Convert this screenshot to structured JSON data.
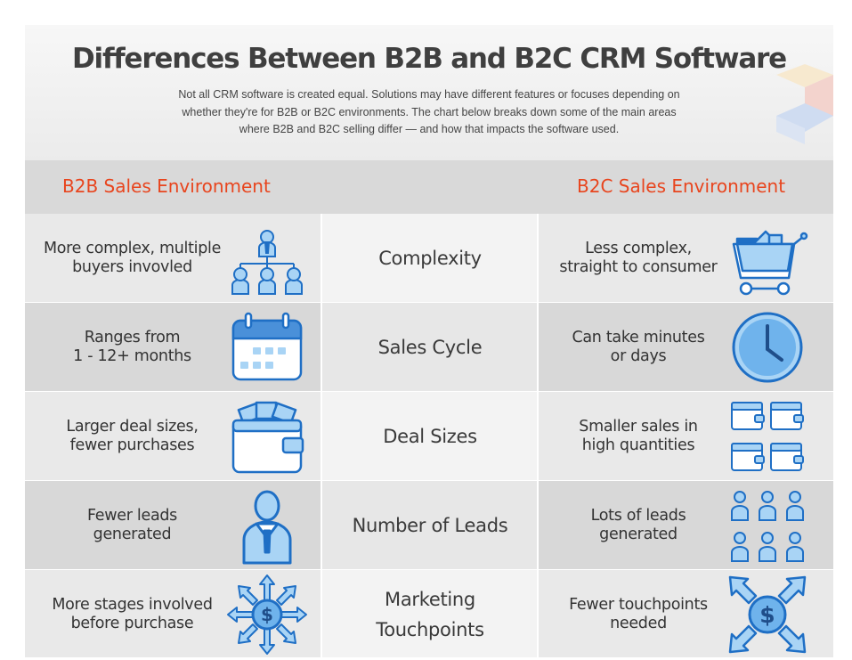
{
  "header": {
    "title": "Differences Between B2B and B2C CRM Software",
    "subtitle": "Not all CRM software is created equal. Solutions may have different features or focuses depending on whether they're for B2B or B2C environments. The chart below breaks down some of the main areas where B2B and B2C selling differ — and how that impacts the software used."
  },
  "columns": {
    "left": "B2B Sales Environment",
    "right": "B2C Sales Environment"
  },
  "rows": [
    {
      "category": "Complexity",
      "b2b": "More complex, multiple\nbuyers invovled",
      "b2c": "Less complex,\nstraight to consumer",
      "b2b_icon": "org-chart-buyers-icon",
      "b2c_icon": "shopping-cart-icon"
    },
    {
      "category": "Sales Cycle",
      "b2b": "Ranges from\n1 - 12+ months",
      "b2c": "Can take minutes\nor days",
      "b2b_icon": "calendar-icon",
      "b2c_icon": "clock-icon"
    },
    {
      "category": "Deal Sizes",
      "b2b": "Larger deal sizes,\nfewer purchases",
      "b2c": "Smaller sales in\nhigh quantities",
      "b2b_icon": "large-wallet-icon",
      "b2c_icon": "small-wallets-icon"
    },
    {
      "category": "Number of Leads",
      "b2b": "Fewer leads\ngenerated",
      "b2c": "Lots of leads\ngenerated",
      "b2b_icon": "single-person-icon",
      "b2c_icon": "many-people-icon"
    },
    {
      "category": "Marketing\nTouchpoints",
      "b2b": "More stages involved\nbefore purchase",
      "b2c": "Fewer touchpoints\nneeded",
      "b2b_icon": "many-arrows-dollar-icon",
      "b2c_icon": "four-arrows-dollar-icon"
    }
  ],
  "colors": {
    "accent": "#e8451e",
    "icon_fill": "#a9d4f5",
    "icon_stroke": "#1f6fc5"
  }
}
